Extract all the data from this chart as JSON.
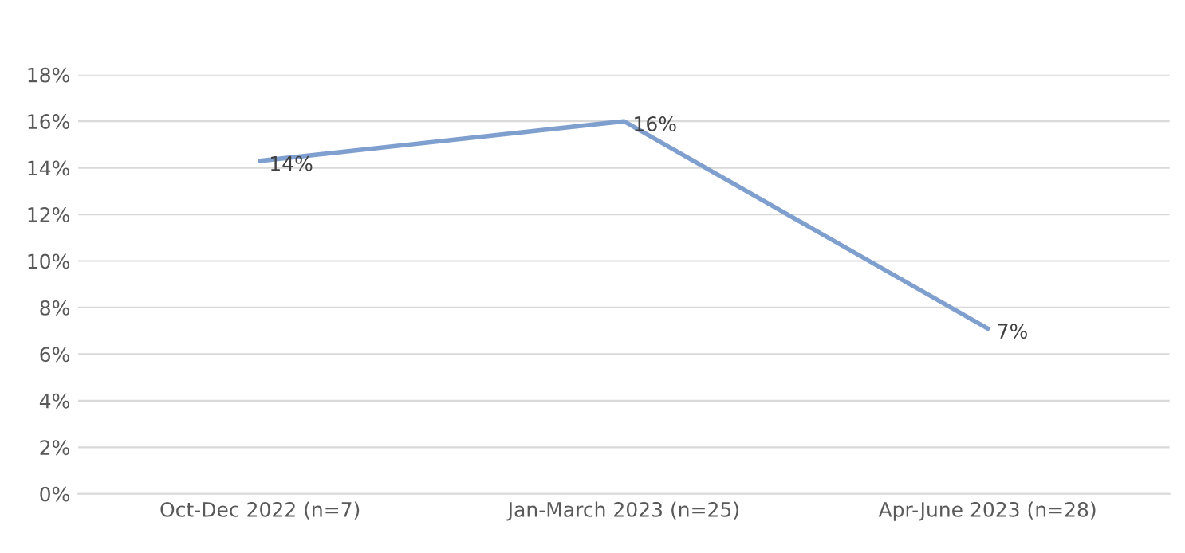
{
  "chart_data": {
    "type": "line",
    "categories": [
      "Oct-Dec 2022 (n=7)",
      "Jan-March 2023 (n=25)",
      "Apr-June 2023 (n=28)"
    ],
    "series": [
      {
        "color": "#7f9fce",
        "values": [
          14.3,
          16.0,
          7.1
        ],
        "value_labels": [
          "14%",
          "16%",
          "7%"
        ]
      }
    ],
    "ylim": [
      0,
      18
    ],
    "yticks": [
      {
        "value": 0,
        "label": "0%"
      },
      {
        "value": 2,
        "label": "2%"
      },
      {
        "value": 4,
        "label": "4%"
      },
      {
        "value": 6,
        "label": "6%"
      },
      {
        "value": 8,
        "label": "8%"
      },
      {
        "value": 10,
        "label": "10%"
      },
      {
        "value": 12,
        "label": "12%"
      },
      {
        "value": 14,
        "label": "14%"
      },
      {
        "value": 16,
        "label": "16%"
      },
      {
        "value": 18,
        "label": "18%"
      }
    ],
    "grid": "y",
    "marker": "none",
    "line_style": "solid"
  }
}
